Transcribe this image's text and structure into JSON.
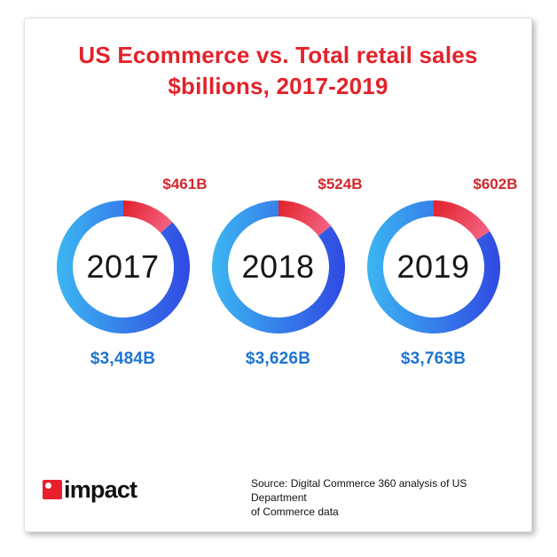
{
  "title": {
    "line1": "US Ecommerce vs. Total retail sales",
    "line2": "$billions, 2017-2019"
  },
  "chart_data": {
    "type": "pie",
    "subtype": "donut-small-multiples",
    "unit": "$billions",
    "series_names": [
      "Ecommerce sales",
      "Total retail sales"
    ],
    "donuts": [
      {
        "year": "2017",
        "ecommerce": 461,
        "total": 3484,
        "ecommerce_label": "$461B",
        "total_label": "$3,484B"
      },
      {
        "year": "2018",
        "ecommerce": 524,
        "total": 3626,
        "ecommerce_label": "$524B",
        "total_label": "$3,626B"
      },
      {
        "year": "2019",
        "ecommerce": 602,
        "total": 3763,
        "ecommerce_label": "$602B",
        "total_label": "$3,763B"
      }
    ],
    "layout": {
      "slice_start": "12-oclock",
      "slice_direction": "clockwise",
      "ecommerce_fraction_of_total": true
    },
    "colors": {
      "title": "#e3222a",
      "ecommerce_gradient_start": "#e3242e",
      "ecommerce_gradient_end": "#f2617f",
      "retail_gradient_start": "#3cb6f2",
      "retail_gradient_end": "#3049e2",
      "ecommerce_label": "#d2282c",
      "retail_label": "#1e74d0",
      "year_text": "#161616"
    }
  },
  "footer": {
    "logo_text": "impact",
    "source_line1": "Source: Digital Commerce 360 analysis of US Department",
    "source_line2": "of Commerce data"
  }
}
